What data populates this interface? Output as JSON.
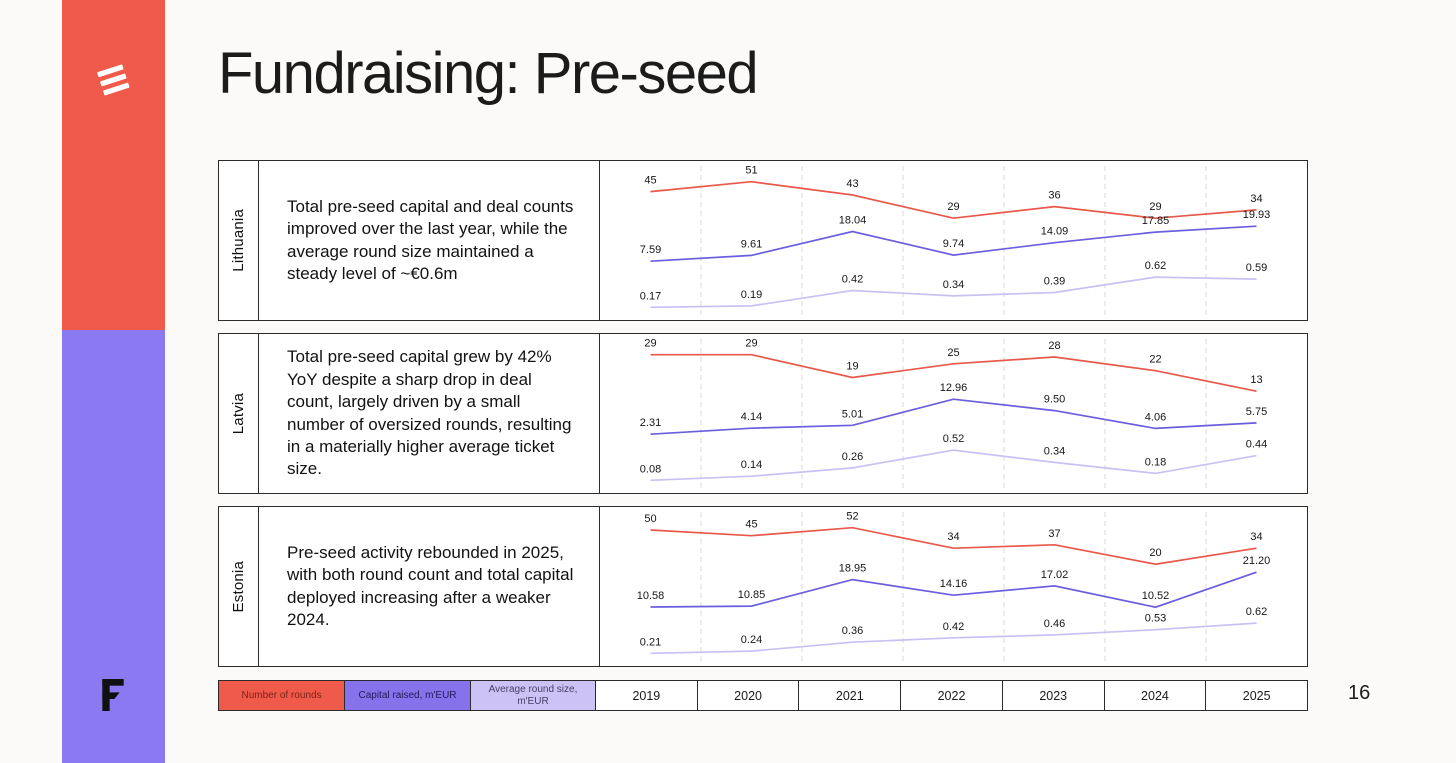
{
  "slide": {
    "title": "Fundraising: Pre-seed",
    "page_number": "16"
  },
  "colors": {
    "coral": "#ef5a4a",
    "purple": "#8a79f1",
    "border": "#2b2b2b",
    "background": "#fbfaf8",
    "line_rounds": "#e8584b",
    "line_capital": "#6a5ede",
    "line_avg": "#c9c1f4"
  },
  "years": [
    "2019",
    "2020",
    "2021",
    "2022",
    "2023",
    "2024",
    "2025"
  ],
  "legend": [
    {
      "label": "Number of rounds",
      "bg": "#ef5a4a",
      "text": "#7c241b"
    },
    {
      "label": "Capital raised, m'EUR",
      "bg": "#8672ea",
      "text": "#241a5a"
    },
    {
      "label": "Average round size, m'EUR",
      "bg": "#ccc2f6",
      "text": "#474066"
    }
  ],
  "rows": [
    {
      "country": "Lithuania",
      "description": "Total pre-seed capital and deal counts improved over the last year, while the average round size maintained a steady level of ~€0.6m"
    },
    {
      "country": "Latvia",
      "description": "Total pre-seed capital grew by 42% YoY despite a sharp drop in deal count, largely driven by a small number of oversized rounds, resulting in a materially higher average ticket size."
    },
    {
      "country": "Estonia",
      "description": "Pre-seed activity rebounded in 2025, with both round count and total capital deployed increasing after a weaker 2024."
    }
  ],
  "chart_data": [
    {
      "type": "line",
      "title": "Lithuania pre-seed fundraising 2019-2025",
      "x": [
        "2019",
        "2020",
        "2021",
        "2022",
        "2023",
        "2024",
        "2025"
      ],
      "grid": "vertical-dashed",
      "legend_position": "bottom",
      "series": [
        {
          "name": "Number of rounds",
          "color": "#e8584b",
          "values": [
            45,
            51,
            43,
            29,
            36,
            29,
            34
          ],
          "labels": [
            "45",
            "51",
            "43",
            "29",
            "36",
            "29",
            "34"
          ]
        },
        {
          "name": "Capital raised, m'EUR",
          "color": "#6a5ede",
          "values": [
            7.59,
            9.61,
            18.04,
            9.74,
            14.09,
            17.85,
            19.93
          ],
          "labels": [
            "7.59",
            "9.61",
            "18.04",
            "9.74",
            "14.09",
            "17.85",
            "19.93"
          ]
        },
        {
          "name": "Average round size, m'EUR",
          "color": "#c9c1f4",
          "values": [
            0.17,
            0.19,
            0.42,
            0.34,
            0.39,
            0.62,
            0.59
          ],
          "labels": [
            "0.17",
            "0.19",
            "0.42",
            "0.34",
            "0.39",
            "0.62",
            "0.59"
          ]
        }
      ]
    },
    {
      "type": "line",
      "title": "Latvia pre-seed fundraising 2019-2025",
      "x": [
        "2019",
        "2020",
        "2021",
        "2022",
        "2023",
        "2024",
        "2025"
      ],
      "grid": "vertical-dashed",
      "legend_position": "bottom",
      "series": [
        {
          "name": "Number of rounds",
          "color": "#e8584b",
          "values": [
            29,
            29,
            19,
            25,
            28,
            22,
            13
          ],
          "labels": [
            "29",
            "29",
            "19",
            "25",
            "28",
            "22",
            "13"
          ]
        },
        {
          "name": "Capital raised, m'EUR",
          "color": "#6a5ede",
          "values": [
            2.31,
            4.14,
            5.01,
            12.96,
            9.5,
            4.06,
            5.75
          ],
          "labels": [
            "2.31",
            "4.14",
            "5.01",
            "12.96",
            "9.50",
            "4.06",
            "5.75"
          ]
        },
        {
          "name": "Average round size, m'EUR",
          "color": "#c9c1f4",
          "values": [
            0.08,
            0.14,
            0.26,
            0.52,
            0.34,
            0.18,
            0.44
          ],
          "labels": [
            "0.08",
            "0.14",
            "0.26",
            "0.52",
            "0.34",
            "0.18",
            "0.44"
          ]
        }
      ]
    },
    {
      "type": "line",
      "title": "Estonia pre-seed fundraising 2019-2025",
      "x": [
        "2019",
        "2020",
        "2021",
        "2022",
        "2023",
        "2024",
        "2025"
      ],
      "grid": "vertical-dashed",
      "legend_position": "bottom",
      "series": [
        {
          "name": "Number of rounds",
          "color": "#e8584b",
          "values": [
            50,
            45,
            52,
            34,
            37,
            20,
            34
          ],
          "labels": [
            "50",
            "45",
            "52",
            "34",
            "37",
            "20",
            "34"
          ]
        },
        {
          "name": "Capital raised, m'EUR",
          "color": "#6a5ede",
          "values": [
            10.58,
            10.85,
            18.95,
            14.16,
            17.02,
            10.52,
            21.2
          ],
          "labels": [
            "10.58",
            "10.85",
            "18.95",
            "14.16",
            "17.02",
            "10.52",
            "21.20"
          ]
        },
        {
          "name": "Average round size, m'EUR",
          "color": "#c9c1f4",
          "values": [
            0.21,
            0.24,
            0.36,
            0.42,
            0.46,
            0.53,
            0.62
          ],
          "labels": [
            "0.21",
            "0.24",
            "0.36",
            "0.42",
            "0.46",
            "0.53",
            "0.62"
          ]
        }
      ]
    }
  ]
}
